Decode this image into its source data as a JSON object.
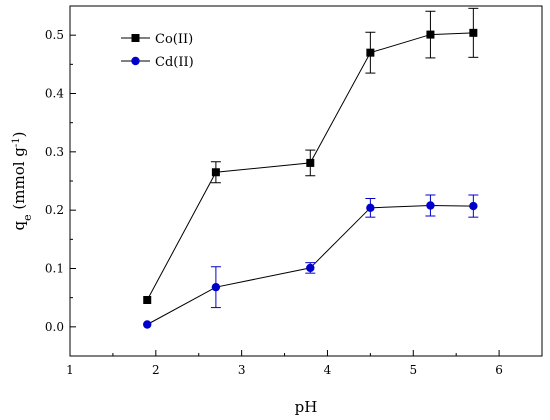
{
  "chart_data": {
    "type": "line",
    "xlabel": "pH",
    "ylabel": {
      "main": "q",
      "sub": "e",
      "unit": " (mmol g",
      "sup": "-1",
      "close": ")"
    },
    "xlim": [
      1,
      6.5
    ],
    "ylim": [
      -0.05,
      0.55
    ],
    "xticks": [
      1,
      2,
      3,
      4,
      5,
      6
    ],
    "yticks": [
      0.0,
      0.1,
      0.2,
      0.3,
      0.4,
      0.5
    ],
    "ytick_labels": [
      "0.0",
      "0.1",
      "0.2",
      "0.3",
      "0.4",
      "0.5"
    ],
    "grid": false,
    "legend": {
      "position": "top-left"
    },
    "series": [
      {
        "name": "Co(II)",
        "marker": "square",
        "color": "#000000",
        "line_color": "#000000",
        "x": [
          1.9,
          2.7,
          3.8,
          4.5,
          5.2,
          5.7
        ],
        "y": [
          0.046,
          0.265,
          0.281,
          0.47,
          0.501,
          0.504
        ],
        "err": [
          0,
          0.018,
          0.022,
          0.035,
          0.04,
          0.042
        ]
      },
      {
        "name": "Cd(II)",
        "marker": "circle",
        "color": "#0000cc",
        "line_color": "#000000",
        "x": [
          1.9,
          2.7,
          3.8,
          4.5,
          5.2,
          5.7
        ],
        "y": [
          0.004,
          0.068,
          0.101,
          0.204,
          0.208,
          0.207
        ],
        "err": [
          0,
          0.035,
          0.009,
          0.016,
          0.018,
          0.019
        ]
      }
    ]
  }
}
